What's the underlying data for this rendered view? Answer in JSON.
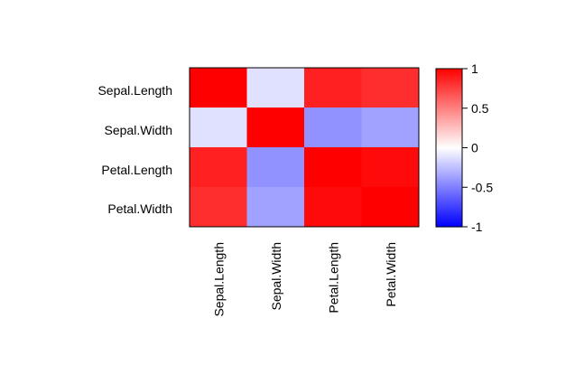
{
  "chart_data": {
    "type": "heatmap",
    "title": "",
    "xlabel": "",
    "ylabel": "",
    "rows": [
      "Sepal.Length",
      "Sepal.Width",
      "Petal.Length",
      "Petal.Width"
    ],
    "cols": [
      "Sepal.Length",
      "Sepal.Width",
      "Petal.Length",
      "Petal.Width"
    ],
    "values": [
      [
        1.0,
        -0.12,
        0.87,
        0.82
      ],
      [
        -0.12,
        1.0,
        -0.43,
        -0.37
      ],
      [
        0.87,
        -0.43,
        1.0,
        0.96
      ],
      [
        0.82,
        -0.37,
        0.96,
        1.0
      ]
    ],
    "colorbar": {
      "range": [
        -1,
        1
      ],
      "ticks": [
        1,
        0.5,
        0,
        -0.5,
        -1
      ],
      "tick_labels": [
        "1",
        "0.5",
        "0",
        "-0.5",
        "-1"
      ],
      "colors": {
        "low": "#0000ff",
        "mid": "#ffffff",
        "high": "#ff0000"
      }
    },
    "grid": false,
    "legend": "right"
  }
}
